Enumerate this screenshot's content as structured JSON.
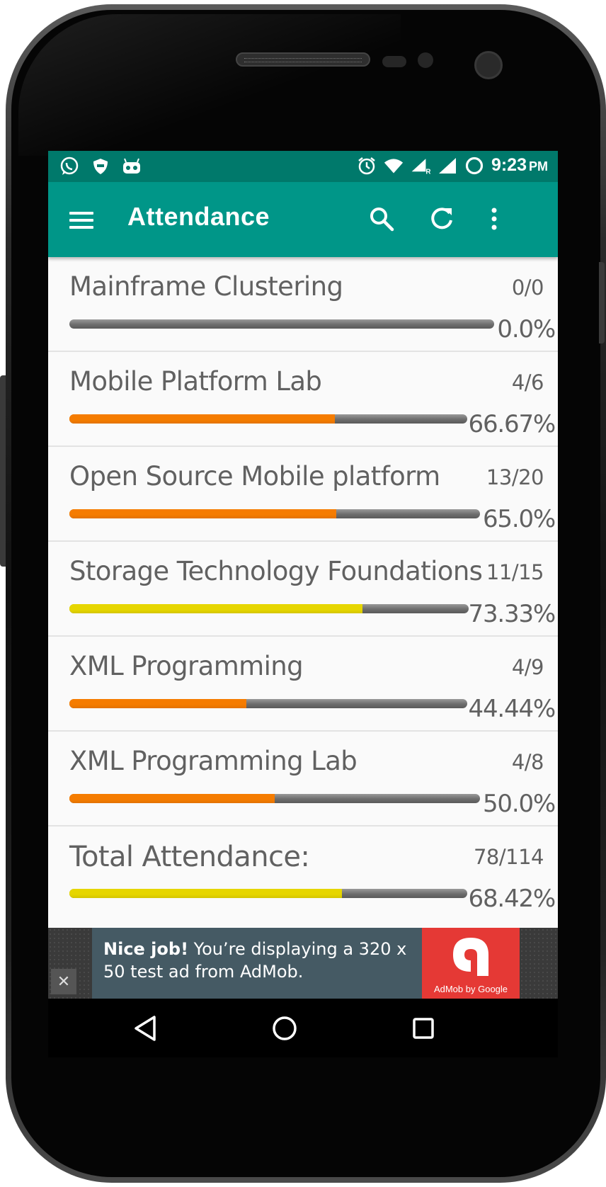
{
  "status_bar": {
    "time": "9:23",
    "ampm": "PM",
    "icons_left": [
      "whatsapp-icon",
      "shield-icon",
      "robot-icon"
    ],
    "icons_right": [
      "alarm-icon",
      "wifi-icon",
      "signal-roaming-icon",
      "signal-icon",
      "battery-icon"
    ]
  },
  "toolbar": {
    "title": "Attendance",
    "menu_icon": "hamburger-menu-icon",
    "search_icon": "search-icon",
    "refresh_icon": "refresh-icon",
    "more_icon": "more-vert-icon"
  },
  "subjects": [
    {
      "name": "Mainframe Clustering",
      "count": "0/0",
      "percent": "0.0%",
      "fraction": 0.0,
      "bar_color": "#f57c00"
    },
    {
      "name": "Mobile Platform Lab",
      "count": "4/6",
      "percent": "66.67%",
      "fraction": 0.6667,
      "bar_color": "#f57c00"
    },
    {
      "name": "Open Source Mobile platform",
      "count": "13/20",
      "percent": "65.0%",
      "fraction": 0.65,
      "bar_color": "#f57c00"
    },
    {
      "name": "Storage Technology Foundations",
      "count": "11/15",
      "percent": "73.33%",
      "fraction": 0.7333,
      "bar_color": "#e6d600"
    },
    {
      "name": "XML Programming",
      "count": "4/9",
      "percent": "44.44%",
      "fraction": 0.4444,
      "bar_color": "#f57c00"
    },
    {
      "name": "XML Programming Lab",
      "count": "4/8",
      "percent": "50.0%",
      "fraction": 0.5,
      "bar_color": "#f57c00"
    }
  ],
  "total": {
    "name": "Total Attendance:",
    "count": "78/114",
    "percent": "68.42%",
    "fraction": 0.6842,
    "bar_color": "#e6d600"
  },
  "ad": {
    "headline": "Nice job!",
    "body": " You’re displaying a 320 x 50 test ad from AdMob.",
    "logo_caption": "AdMob by Google",
    "close": "✕"
  },
  "nav": {
    "back_icon": "back-icon",
    "home_icon": "home-icon",
    "recents_icon": "recents-icon"
  }
}
